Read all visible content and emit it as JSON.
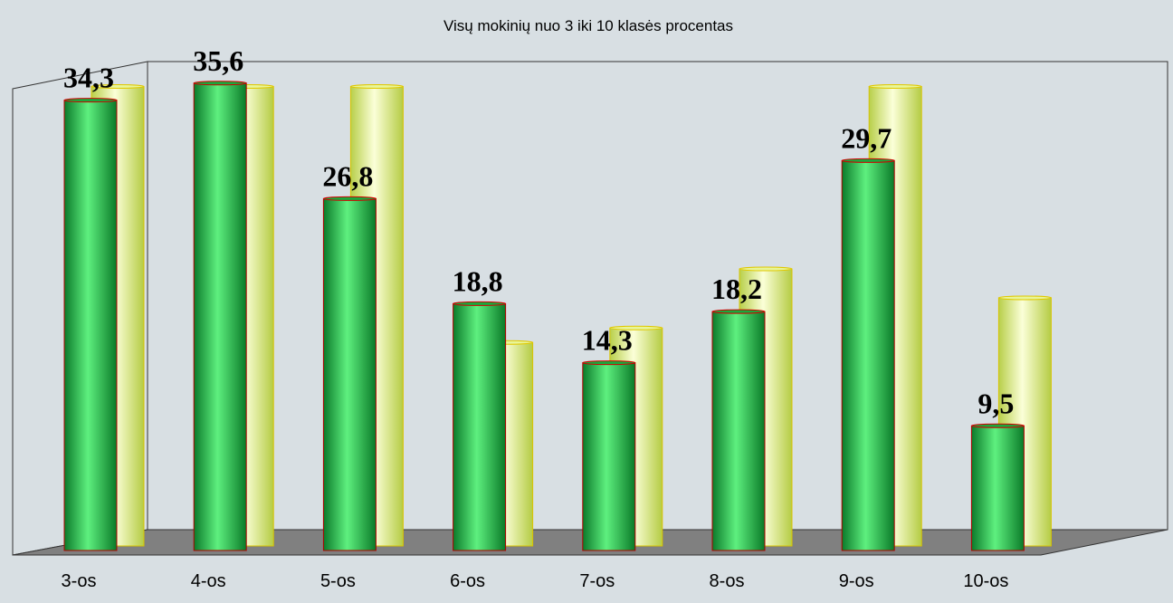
{
  "chart_data": {
    "type": "bar3d",
    "title": "Visų mokinių nuo 3 iki 10 klasės procentas",
    "categories": [
      "3-os",
      "4-os",
      "5-os",
      "6-os",
      "7-os",
      "8-os",
      "9-os",
      "10-os"
    ],
    "series": [
      {
        "color": "#1aa83c",
        "values": [
          34.3,
          35.6,
          26.8,
          18.8,
          14.3,
          18.2,
          29.7,
          9.5
        ],
        "value_labels": [
          "34,3",
          "35,6",
          "26,8",
          "18,8",
          "14,3",
          "18,2",
          "29,7",
          "9,5"
        ]
      },
      {
        "color": "#e8f59a",
        "values": [
          35,
          35,
          35,
          15.5,
          16.6,
          21.1,
          35,
          18.9
        ]
      }
    ]
  }
}
